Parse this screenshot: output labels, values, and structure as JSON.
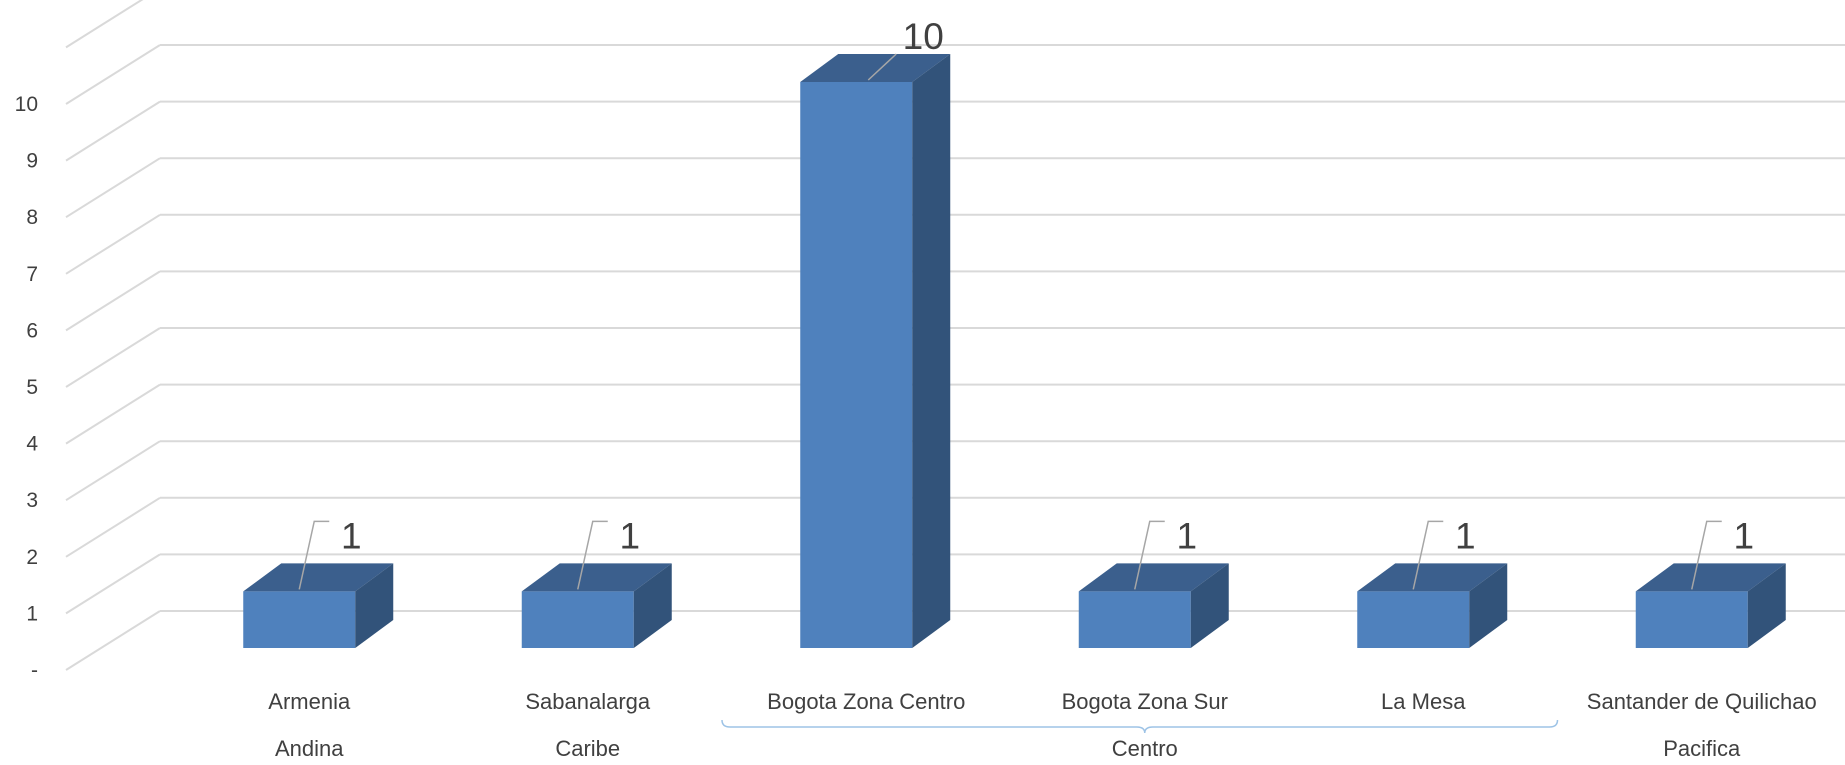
{
  "chart_data": {
    "type": "bar",
    "title": "",
    "xlabel": "",
    "ylabel": "",
    "ylim": [
      0,
      11
    ],
    "y_ticks": [
      {
        "value": 0,
        "label": "-"
      },
      {
        "value": 1,
        "label": "1"
      },
      {
        "value": 2,
        "label": "2"
      },
      {
        "value": 3,
        "label": "3"
      },
      {
        "value": 4,
        "label": "4"
      },
      {
        "value": 5,
        "label": "5"
      },
      {
        "value": 6,
        "label": "6"
      },
      {
        "value": 7,
        "label": "7"
      },
      {
        "value": 8,
        "label": "8"
      },
      {
        "value": 9,
        "label": "9"
      },
      {
        "value": 10,
        "label": "10"
      }
    ],
    "grid": true,
    "legend": "none",
    "categories": [
      "Armenia",
      "Sabanalarga",
      "Bogota Zona Centro",
      "Bogota Zona Sur",
      "La Mesa",
      "Santander de Quilichao"
    ],
    "values": [
      1,
      1,
      10,
      1,
      1,
      1
    ],
    "data_labels": [
      "1",
      "1",
      "10",
      "1",
      "1",
      "1"
    ],
    "groups": [
      {
        "name": "Andina",
        "categories": [
          "Armenia"
        ]
      },
      {
        "name": "Caribe",
        "categories": [
          "Sabanalarga"
        ]
      },
      {
        "name": "Centro",
        "categories": [
          "Bogota Zona Centro",
          "Bogota Zona Sur",
          "La Mesa"
        ]
      },
      {
        "name": "Pacifica",
        "categories": [
          "Santander de Quilichao"
        ]
      }
    ],
    "colors": {
      "bar_front": "#4f81bd",
      "bar_top": "#3b5f8d",
      "bar_side": "#32537a",
      "grid": "#d9d9d9",
      "text": "#404040",
      "leader": "#a6a6a6",
      "bracket": "#9dc3e6"
    }
  }
}
